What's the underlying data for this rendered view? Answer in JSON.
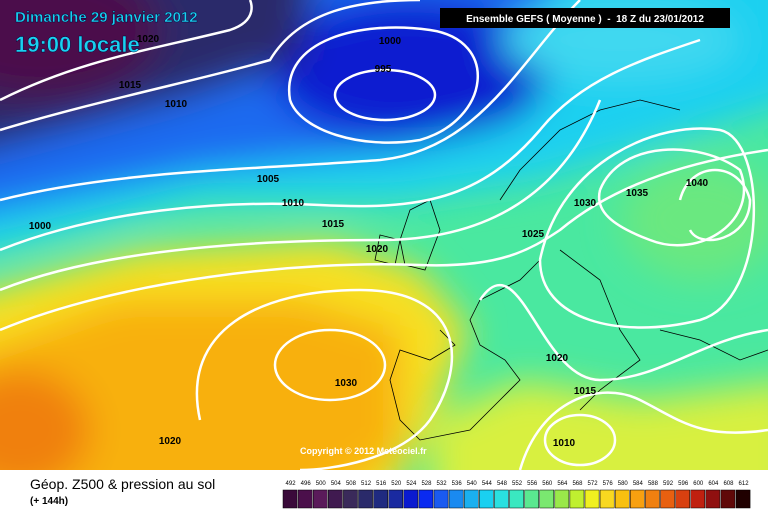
{
  "header": {
    "date": "Dimanche 29 janvier 2012",
    "time": "19:00 locale",
    "model": "Ensemble GEFS ( Moyenne )  -  18 Z du 23/01/2012"
  },
  "isobar_labels": [
    "1020",
    "1015",
    "1010",
    "1000",
    "995",
    "1005",
    "1010",
    "1015",
    "1020",
    "1000",
    "1030",
    "1035",
    "1040",
    "1025",
    "1030",
    "1020",
    "1015",
    "1010",
    "1020"
  ],
  "copyright": "Copyright © 2012 Meteociel.fr",
  "legend": {
    "title": "Géop. Z500 & pression au sol",
    "lead": "(+ 144h)",
    "labels": [
      492,
      496,
      500,
      504,
      508,
      512,
      516,
      520,
      524,
      528,
      532,
      536,
      540,
      544,
      548,
      552,
      556,
      560,
      564,
      568,
      572,
      576,
      580,
      584,
      588,
      592,
      596,
      600,
      604,
      608,
      612
    ],
    "colors": [
      "#3a0a3a",
      "#4b0f4b",
      "#5a1a5a",
      "#401a50",
      "#3a2a5a",
      "#2a2a6a",
      "#1f2a80",
      "#1a2aa0",
      "#0a1ad0",
      "#0a2af0",
      "#1a5af0",
      "#1a8af0",
      "#1ab0f0",
      "#1ad0f0",
      "#2ae0e0",
      "#3ae8c0",
      "#5ae890",
      "#7ae870",
      "#9ae84a",
      "#c0f030",
      "#f0f020",
      "#f8d820",
      "#f8c010",
      "#f8a010",
      "#f08010",
      "#e86010",
      "#d84010",
      "#c02010",
      "#901010",
      "#600808",
      "#200000"
    ]
  }
}
